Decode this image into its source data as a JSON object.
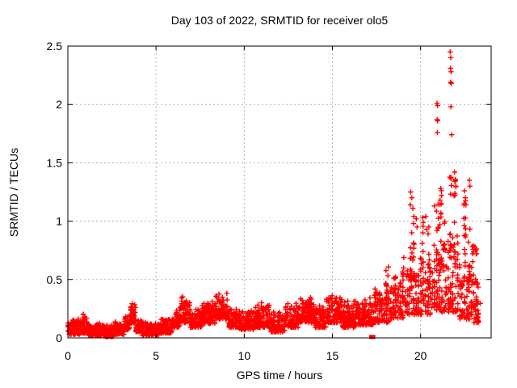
{
  "chart_data": {
    "type": "scatter",
    "title": "Day 103 of 2022, SRMTID for receiver olo5",
    "xlabel": "GPS time / hours",
    "ylabel": "SRMTID / TECUs",
    "xlim": [
      0,
      24
    ],
    "ylim": [
      0,
      2.5
    ],
    "x_ticks": [
      [
        0,
        "0"
      ],
      [
        5,
        "5"
      ],
      [
        10,
        "10"
      ],
      [
        15,
        "15"
      ],
      [
        20,
        "20"
      ]
    ],
    "y_ticks": [
      [
        0,
        "0"
      ],
      [
        0.5,
        "0.5"
      ],
      [
        1,
        "1"
      ],
      [
        1.5,
        "1.5"
      ],
      [
        2,
        "2"
      ],
      [
        2.5,
        "2.5"
      ]
    ],
    "grid": true,
    "legend": "none",
    "marker": "plus",
    "marker_color": "#ff0000",
    "square_marker_color": "#ff0000",
    "grid_color": "#b0b0b0",
    "border_color": "#000000",
    "background_color": "#ffffff",
    "seed": 103,
    "band_segments": [
      [
        0.0,
        0.7,
        85,
        0.03,
        0.14
      ],
      [
        0.7,
        1.1,
        50,
        0.04,
        0.17
      ],
      [
        1.1,
        2.0,
        105,
        0.02,
        0.11
      ],
      [
        2.0,
        2.6,
        70,
        0.01,
        0.09
      ],
      [
        2.6,
        3.2,
        70,
        0.03,
        0.13
      ],
      [
        3.2,
        3.5,
        40,
        0.07,
        0.18
      ],
      [
        3.5,
        3.85,
        45,
        0.12,
        0.26
      ],
      [
        3.85,
        4.15,
        38,
        0.05,
        0.16
      ],
      [
        4.15,
        5.2,
        120,
        0.02,
        0.12
      ],
      [
        5.2,
        5.9,
        80,
        0.04,
        0.16
      ],
      [
        5.9,
        6.3,
        48,
        0.09,
        0.22
      ],
      [
        6.3,
        6.95,
        75,
        0.13,
        0.32
      ],
      [
        6.95,
        7.6,
        75,
        0.09,
        0.23
      ],
      [
        7.6,
        8.35,
        85,
        0.12,
        0.28
      ],
      [
        8.35,
        9.1,
        85,
        0.16,
        0.34
      ],
      [
        9.1,
        9.65,
        65,
        0.09,
        0.22
      ],
      [
        9.65,
        10.55,
        100,
        0.07,
        0.2
      ],
      [
        10.55,
        11.45,
        100,
        0.09,
        0.26
      ],
      [
        11.45,
        12.3,
        95,
        0.05,
        0.2
      ],
      [
        12.3,
        13.15,
        95,
        0.09,
        0.26
      ],
      [
        13.15,
        14.0,
        95,
        0.13,
        0.31
      ],
      [
        14.0,
        14.65,
        75,
        0.09,
        0.25
      ],
      [
        14.65,
        15.55,
        100,
        0.13,
        0.35
      ],
      [
        15.55,
        16.3,
        85,
        0.09,
        0.28
      ],
      [
        16.3,
        17.35,
        115,
        0.11,
        0.3
      ],
      [
        17.35,
        18.25,
        100,
        0.13,
        0.38
      ],
      [
        18.25,
        19.05,
        70,
        0.17,
        0.45
      ],
      [
        19.05,
        19.85,
        70,
        0.2,
        0.55
      ],
      [
        19.85,
        20.65,
        70,
        0.2,
        0.6
      ],
      [
        20.65,
        21.45,
        75,
        0.22,
        0.7
      ],
      [
        21.45,
        22.25,
        75,
        0.22,
        0.78
      ],
      [
        22.25,
        23.0,
        70,
        0.16,
        0.65
      ],
      [
        23.0,
        23.35,
        35,
        0.13,
        0.48
      ]
    ],
    "spike_columns": [
      [
        0.9,
        0.06,
        8,
        0.1,
        0.21
      ],
      [
        18.1,
        0.07,
        10,
        0.3,
        0.62
      ],
      [
        18.55,
        0.06,
        8,
        0.28,
        0.56
      ],
      [
        19.0,
        0.07,
        12,
        0.3,
        0.75
      ],
      [
        19.45,
        0.06,
        10,
        0.45,
        1.0
      ],
      [
        19.6,
        0.05,
        8,
        0.5,
        1.14
      ],
      [
        20.1,
        0.06,
        10,
        0.45,
        1.05
      ],
      [
        20.45,
        0.06,
        10,
        0.4,
        0.96
      ],
      [
        20.95,
        0.06,
        10,
        0.5,
        1.15
      ],
      [
        21.15,
        0.06,
        12,
        0.5,
        1.3
      ],
      [
        21.35,
        0.05,
        8,
        0.45,
        1.2
      ],
      [
        21.7,
        0.06,
        14,
        0.5,
        1.38
      ],
      [
        21.95,
        0.06,
        12,
        0.55,
        1.42
      ],
      [
        22.5,
        0.06,
        12,
        0.5,
        1.26
      ],
      [
        22.75,
        0.05,
        10,
        0.3,
        0.95
      ],
      [
        22.95,
        0.06,
        10,
        0.25,
        0.8
      ],
      [
        23.2,
        0.06,
        8,
        0.3,
        0.78
      ]
    ],
    "column_quantize": {
      "from": 17.3,
      "step": 0.13,
      "jitter": 0.035
    },
    "outliers": [
      [
        19.44,
        1.25
      ],
      [
        19.5,
        1.2
      ],
      [
        19.42,
        1.14
      ],
      [
        19.56,
        1.11
      ],
      [
        19.62,
        1.04
      ],
      [
        19.76,
        1.02
      ],
      [
        19.8,
        0.95
      ],
      [
        20.12,
        1.03
      ],
      [
        20.3,
        1.04
      ],
      [
        20.35,
        0.93
      ],
      [
        20.47,
        0.95
      ],
      [
        20.78,
        1.13
      ],
      [
        20.93,
        2.01
      ],
      [
        20.96,
        1.99
      ],
      [
        20.94,
        1.87
      ],
      [
        20.97,
        1.86
      ],
      [
        20.95,
        1.76
      ],
      [
        21.14,
        1.28
      ],
      [
        21.19,
        1.22
      ],
      [
        21.1,
        1.18
      ],
      [
        21.68,
        2.45
      ],
      [
        21.71,
        2.4
      ],
      [
        21.69,
        2.31
      ],
      [
        21.73,
        2.28
      ],
      [
        21.7,
        2.19
      ],
      [
        21.74,
        2.18
      ],
      [
        21.72,
        1.98
      ],
      [
        21.76,
        1.74
      ],
      [
        21.93,
        1.42
      ],
      [
        21.97,
        1.35
      ],
      [
        22.0,
        1.3
      ],
      [
        22.49,
        1.26
      ],
      [
        22.54,
        1.2
      ],
      [
        22.57,
        1.14
      ],
      [
        22.77,
        1.35
      ],
      [
        22.8,
        1.3
      ],
      [
        23.08,
        0.78
      ],
      [
        23.13,
        0.75
      ],
      [
        23.18,
        0.72
      ]
    ],
    "square_points": [
      [
        17.2,
        0.008
      ],
      [
        17.32,
        0.008
      ]
    ]
  }
}
